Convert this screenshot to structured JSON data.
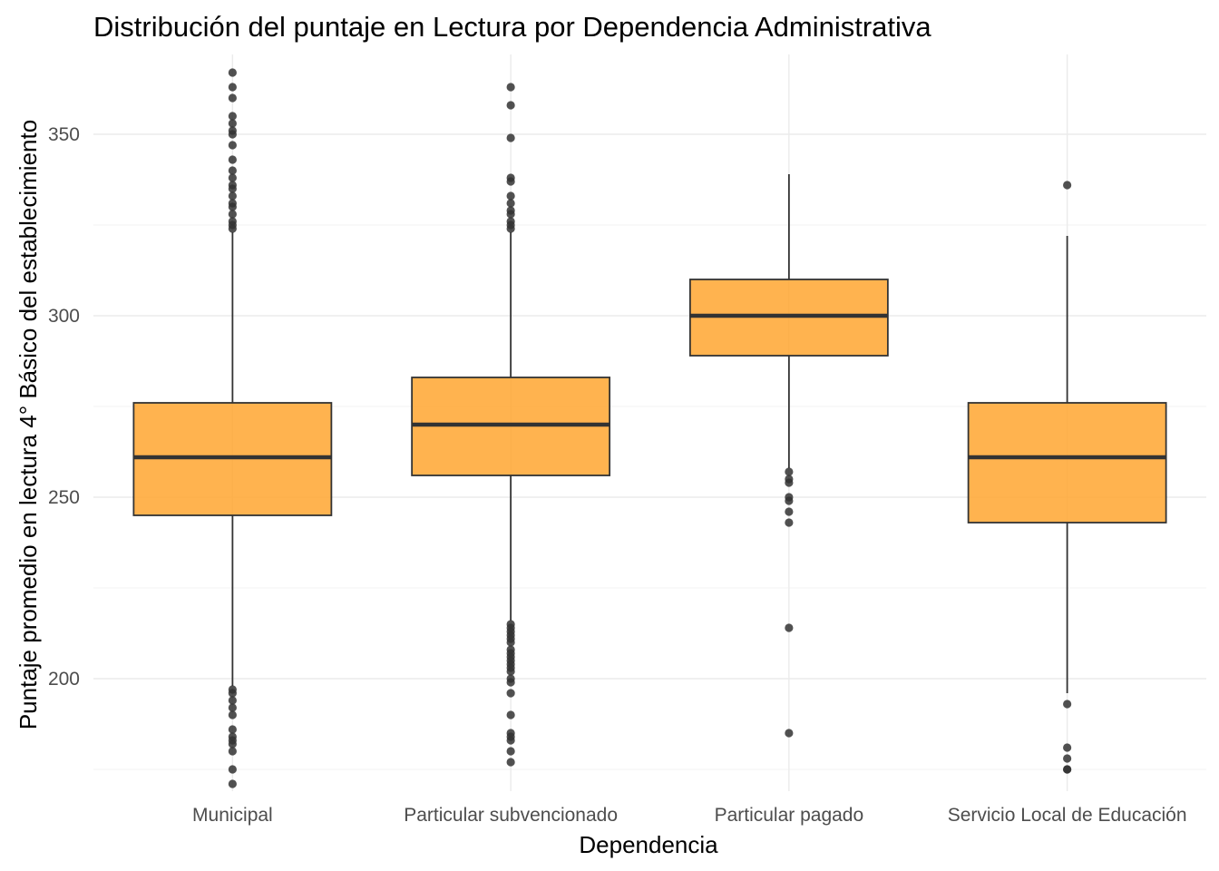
{
  "chart_data": {
    "type": "boxplot",
    "title": "Distribución del puntaje en Lectura por Dependencia Administrativa",
    "xlabel": "Dependencia",
    "ylabel": "Puntaje promedio en lectura 4° Básico del establecimiento",
    "ylim": [
      169,
      372
    ],
    "yticks": [
      200,
      250,
      300,
      350
    ],
    "grid": true,
    "legend": "none",
    "colors": {
      "box_fill": "#FFA630",
      "box_stroke": "#333333",
      "outlier": "#333333"
    },
    "categories": [
      "Municipal",
      "Particular subvencionado",
      "Particular pagado",
      "Servicio Local de Educación"
    ],
    "boxes": [
      {
        "name": "Municipal",
        "q1": 245,
        "median": 261,
        "q3": 276,
        "whisker_low": 198,
        "whisker_high": 323,
        "outliers": [
          367,
          363,
          360,
          355,
          353,
          351,
          350,
          347,
          343,
          340,
          338,
          336,
          335,
          333,
          331,
          330,
          328,
          326,
          325,
          324,
          197,
          196,
          194,
          192,
          190,
          186,
          184,
          183,
          182,
          180,
          175,
          171
        ]
      },
      {
        "name": "Particular subvencionado",
        "q1": 256,
        "median": 270,
        "q3": 283,
        "whisker_low": 216,
        "whisker_high": 323,
        "outliers": [
          363,
          358,
          349,
          338,
          337,
          333,
          331,
          329,
          328,
          326,
          325,
          324,
          215,
          214,
          213,
          212,
          211,
          210,
          208,
          207,
          206,
          205,
          204,
          203,
          202,
          200,
          199,
          196,
          190,
          185,
          184,
          183,
          180,
          177
        ]
      },
      {
        "name": "Particular pagado",
        "q1": 289,
        "median": 300,
        "q3": 310,
        "whisker_low": 258,
        "whisker_high": 339,
        "outliers": [
          257,
          255,
          254,
          250,
          249,
          246,
          243,
          214,
          185
        ]
      },
      {
        "name": "Servicio Local de Educación",
        "q1": 243,
        "median": 261,
        "q3": 276,
        "whisker_low": 196,
        "whisker_high": 322,
        "outliers": [
          336,
          193,
          181,
          178,
          175,
          175
        ]
      }
    ]
  }
}
